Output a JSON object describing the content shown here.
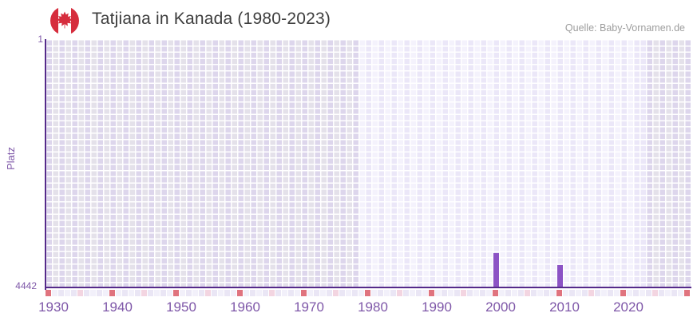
{
  "header": {
    "title": "Tatjiana in Kanada (1980-2023)",
    "source_label": "Quelle: Baby-Vornamen.de",
    "flag_icon": "canada-flag-icon"
  },
  "chart_data": {
    "type": "bar",
    "title": "Tatjiana in Kanada (1980-2023)",
    "ylabel": "Platz",
    "y_axis": {
      "min": 1,
      "max": 4442,
      "inverted": true,
      "top_tick_label": "1",
      "bottom_tick_label": "4442",
      "grid": true
    },
    "x_axis": {
      "start_year": 1929,
      "end_year": 2029,
      "tick_years": [
        1930,
        1940,
        1950,
        1960,
        1970,
        1980,
        1990,
        2000,
        2010,
        2020
      ]
    },
    "points": [
      {
        "year": 1999,
        "platz": 3820
      },
      {
        "year": 2009,
        "platz": 4040
      }
    ],
    "highlight_range": {
      "from_year": 1978,
      "to_year": 2022
    },
    "marker_strip": {
      "red_start_year": 1929,
      "pink_start_year": 1934,
      "interval": 10
    },
    "legend": "none"
  },
  "colors": {
    "title": "#3d3d3d",
    "source": "#9d9d9d",
    "tick_label": "#7e57a8",
    "axis_line": "#552a8a",
    "bar": "#8c53c5",
    "grid_dark_a": "#ddd6ec",
    "grid_dark_b": "#e4e1ea",
    "grid_light_a": "#ebe7f8",
    "grid_light_b": "#f4f2fc",
    "strip_base_a": "#eae6f5",
    "strip_base_b": "#f2f0fa",
    "marker_red": "#e0737e",
    "marker_pink": "#f3d5e1",
    "flag_red": "#d62d3d"
  }
}
